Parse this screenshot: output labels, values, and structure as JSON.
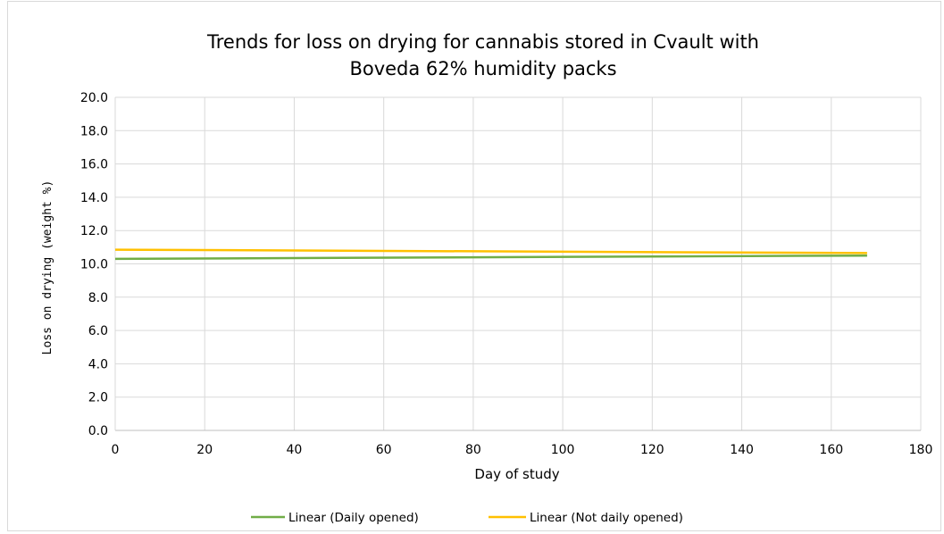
{
  "chart_data": {
    "type": "line",
    "title": [
      "Trends for loss on drying for cannabis stored in Cvault with",
      "Boveda 62% humidity packs"
    ],
    "xlabel": "Day of study",
    "ylabel": "Loss on drying (weight %)",
    "xlim": [
      0,
      180
    ],
    "ylim": [
      0,
      20
    ],
    "x_ticks": [
      "0",
      "20",
      "40",
      "60",
      "80",
      "100",
      "120",
      "140",
      "160",
      "180"
    ],
    "y_ticks": [
      "0.0",
      "2.0",
      "4.0",
      "6.0",
      "8.0",
      "10.0",
      "12.0",
      "14.0",
      "16.0",
      "18.0",
      "20.0"
    ],
    "grid": true,
    "legend_position": "bottom",
    "series": [
      {
        "name": "Linear (Daily opened)",
        "color": "#70ad47",
        "x": [
          0,
          168
        ],
        "y": [
          10.3,
          10.5
        ]
      },
      {
        "name": "Linear (Not daily opened)",
        "color": "#ffc000",
        "x": [
          0,
          168
        ],
        "y": [
          10.85,
          10.65
        ]
      }
    ]
  }
}
